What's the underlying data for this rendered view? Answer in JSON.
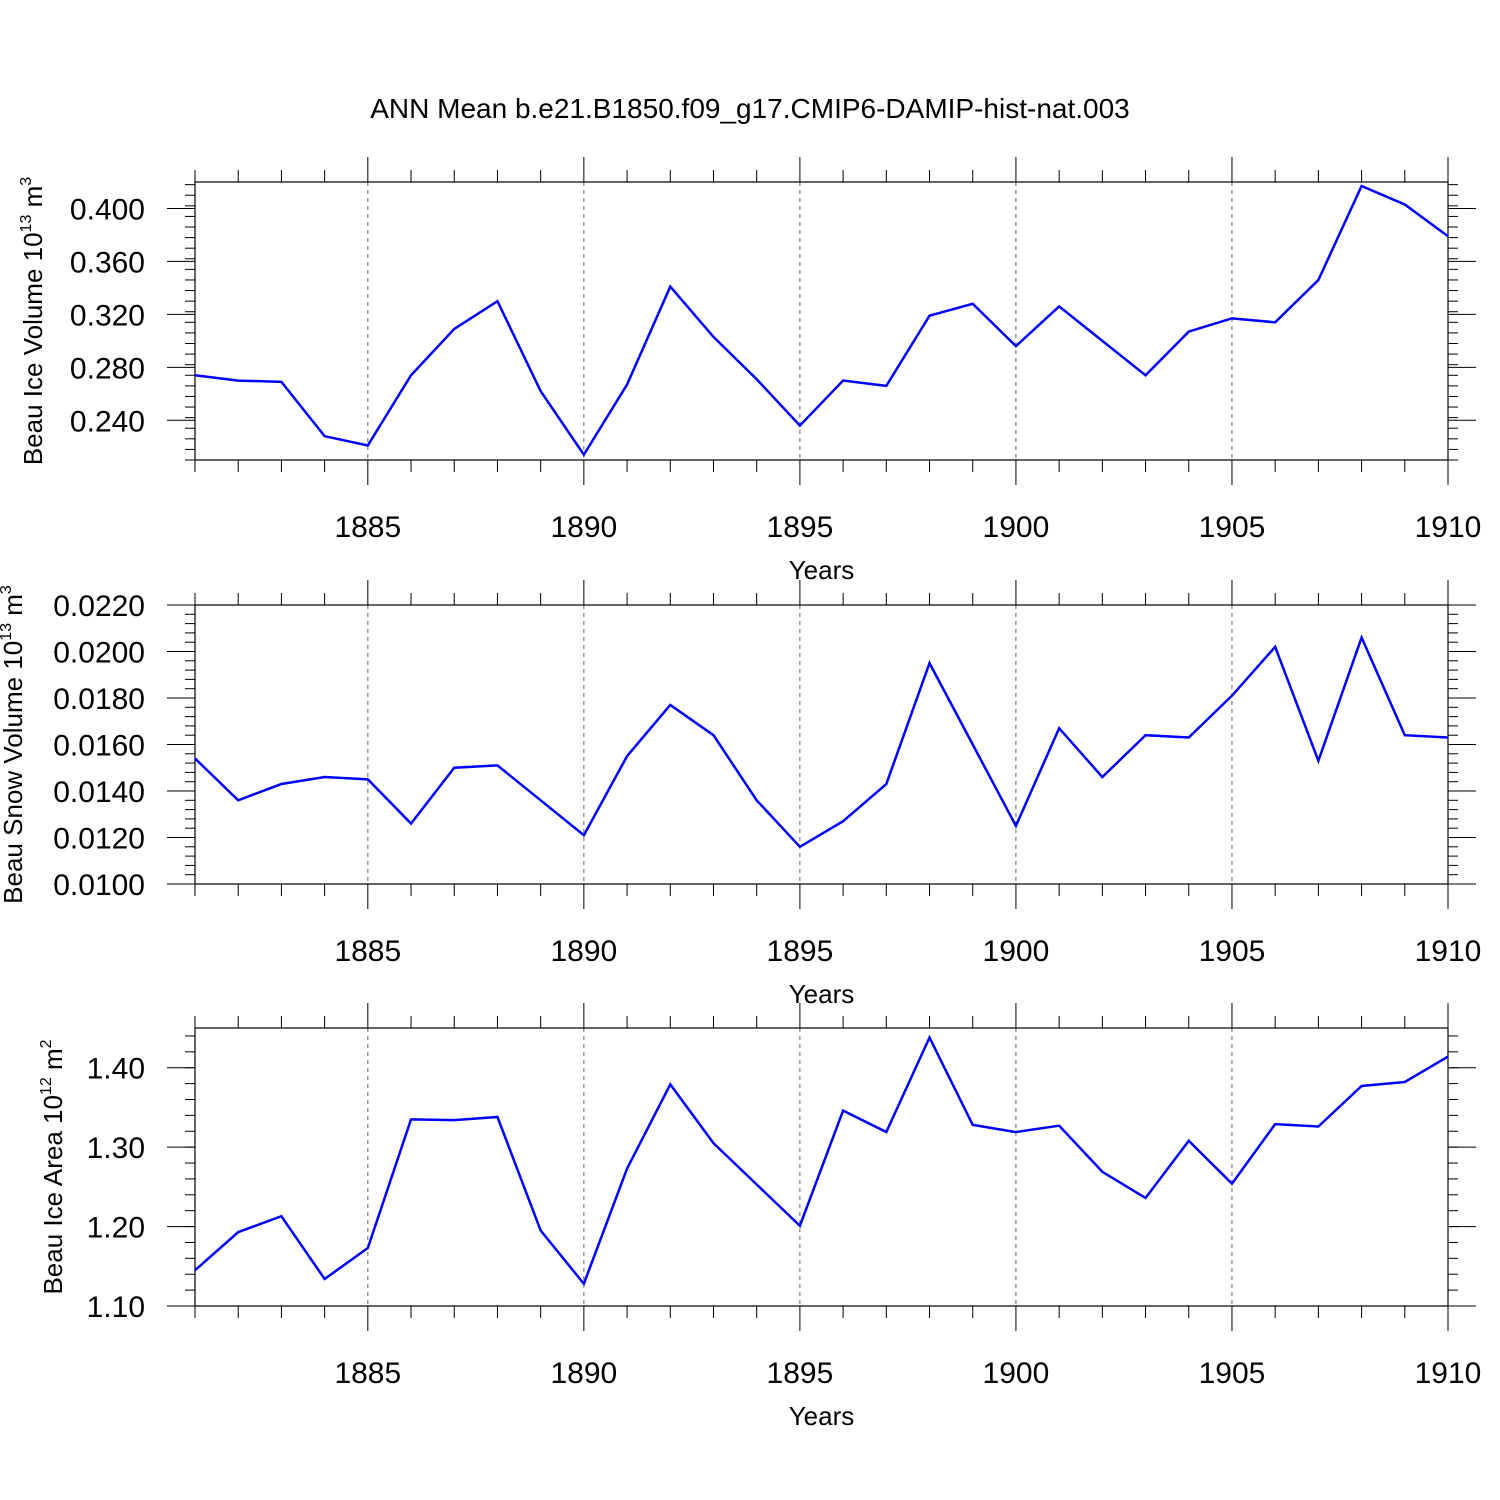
{
  "colors": {
    "line": "#0000ff",
    "axis": "#000000",
    "grid": "#666666"
  },
  "chart_data": [
    {
      "type": "line",
      "title": "ANN Mean b.e21.B1850.f09_g17.CMIP6-DAMIP-hist-nat.003",
      "xlabel": "Years",
      "ylabel": "Beau Ice Volume 10",
      "ylabel_exp": "13",
      "ylabel_unit": "m",
      "ylabel_unit_exp": "3",
      "xlim": [
        1881,
        1910
      ],
      "ylim": [
        0.21,
        0.42
      ],
      "xticks": [
        1885,
        1890,
        1895,
        1900,
        1905,
        1910
      ],
      "xtick_labels": [
        "1885",
        "1890",
        "1895",
        "1900",
        "1905",
        "1910"
      ],
      "yticks": [
        0.24,
        0.28,
        0.32,
        0.36,
        0.4
      ],
      "ytick_labels": [
        "0.240",
        "0.280",
        "0.320",
        "0.360",
        "0.400"
      ],
      "ytick_step_minor": 0.008,
      "grid": "vertical-dashed",
      "x": [
        1881,
        1882,
        1883,
        1884,
        1885,
        1886,
        1887,
        1888,
        1889,
        1890,
        1891,
        1892,
        1893,
        1894,
        1895,
        1896,
        1897,
        1898,
        1899,
        1900,
        1901,
        1902,
        1903,
        1904,
        1905,
        1906,
        1907,
        1908,
        1909,
        1910
      ],
      "series": [
        {
          "name": "Beau Ice Volume",
          "values": [
            0.274,
            0.27,
            0.269,
            0.228,
            0.221,
            0.274,
            0.309,
            0.33,
            0.262,
            0.214,
            0.267,
            0.341,
            0.303,
            0.271,
            0.236,
            0.27,
            0.266,
            0.319,
            0.328,
            0.296,
            0.326,
            0.3,
            0.274,
            0.307,
            0.317,
            0.314,
            0.346,
            0.417,
            0.403,
            0.379
          ]
        }
      ]
    },
    {
      "type": "line",
      "title": "",
      "xlabel": "Years",
      "ylabel": "Beau Snow Volume 10",
      "ylabel_exp": "13",
      "ylabel_unit": "m",
      "ylabel_unit_exp": "3",
      "xlim": [
        1881,
        1910
      ],
      "ylim": [
        0.01,
        0.022
      ],
      "xticks": [
        1885,
        1890,
        1895,
        1900,
        1905,
        1910
      ],
      "xtick_labels": [
        "1885",
        "1890",
        "1895",
        "1900",
        "1905",
        "1910"
      ],
      "yticks": [
        0.01,
        0.012,
        0.014,
        0.016,
        0.018,
        0.02,
        0.022
      ],
      "ytick_labels": [
        "0.0100",
        "0.0120",
        "0.0140",
        "0.0160",
        "0.0180",
        "0.0200",
        "0.0220"
      ],
      "ytick_step_minor": 0.0004,
      "grid": "vertical-dashed",
      "x": [
        1881,
        1882,
        1883,
        1884,
        1885,
        1886,
        1887,
        1888,
        1889,
        1890,
        1891,
        1892,
        1893,
        1894,
        1895,
        1896,
        1897,
        1898,
        1899,
        1900,
        1901,
        1902,
        1903,
        1904,
        1905,
        1906,
        1907,
        1908,
        1909,
        1910
      ],
      "series": [
        {
          "name": "Beau Snow Volume",
          "values": [
            0.0154,
            0.0136,
            0.0143,
            0.0146,
            0.0145,
            0.0126,
            0.015,
            0.0151,
            0.0136,
            0.0121,
            0.0155,
            0.0177,
            0.0164,
            0.0136,
            0.0116,
            0.0127,
            0.0143,
            0.0195,
            0.016,
            0.0125,
            0.0167,
            0.0146,
            0.0164,
            0.0163,
            0.0181,
            0.0202,
            0.0153,
            0.0206,
            0.0164,
            0.0163
          ]
        }
      ]
    },
    {
      "type": "line",
      "title": "",
      "xlabel": "Years",
      "ylabel": "Beau Ice Area 10",
      "ylabel_exp": "12",
      "ylabel_unit": "m",
      "ylabel_unit_exp": "2",
      "xlim": [
        1881,
        1910
      ],
      "ylim": [
        1.1,
        1.45
      ],
      "xticks": [
        1885,
        1890,
        1895,
        1900,
        1905,
        1910
      ],
      "xtick_labels": [
        "1885",
        "1890",
        "1895",
        "1900",
        "1905",
        "1910"
      ],
      "yticks": [
        1.1,
        1.2,
        1.3,
        1.4
      ],
      "ytick_labels": [
        "1.10",
        "1.20",
        "1.30",
        "1.40"
      ],
      "ytick_step_minor": 0.02,
      "grid": "vertical-dashed",
      "x": [
        1881,
        1882,
        1883,
        1884,
        1885,
        1886,
        1887,
        1888,
        1889,
        1890,
        1891,
        1892,
        1893,
        1894,
        1895,
        1896,
        1897,
        1898,
        1899,
        1900,
        1901,
        1902,
        1903,
        1904,
        1905,
        1906,
        1907,
        1908,
        1909,
        1910
      ],
      "series": [
        {
          "name": "Beau Ice Area",
          "values": [
            1.145,
            1.193,
            1.213,
            1.134,
            1.173,
            1.335,
            1.334,
            1.338,
            1.195,
            1.128,
            1.273,
            1.379,
            1.305,
            1.253,
            1.201,
            1.346,
            1.319,
            1.438,
            1.328,
            1.319,
            1.327,
            1.269,
            1.236,
            1.308,
            1.254,
            1.329,
            1.326,
            1.377,
            1.382,
            1.414
          ]
        }
      ]
    }
  ]
}
